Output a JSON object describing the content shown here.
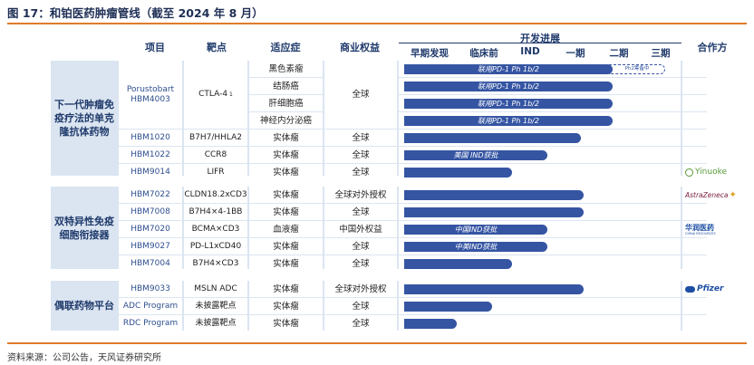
{
  "title": "图 17：和铂医药肿瘤管线（截至 2024 年 8 月）",
  "source": "资料来源：公司公告，天风证券研究所",
  "headers": {
    "project": "项目",
    "target": "靶点",
    "indication": "适应症",
    "rights": "商业权益",
    "progress": "开发进展",
    "partner": "合作方",
    "stages": [
      "早期发现",
      "临床前",
      "IND",
      "一期",
      "二期",
      "三期"
    ]
  },
  "groups": [
    {
      "label": "下一代肿瘤免疫疗法的单克隆抗体药物"
    },
    {
      "label": "双特异性免疫细胞衔接器"
    },
    {
      "label": "偶联药物平台"
    }
  ],
  "rows": [
    {
      "project": "Porustobart HBM4003",
      "target": "CTLA-4",
      "target_sup": "1",
      "rights": "全球",
      "indications": [
        {
          "name": "黑色素瘤",
          "bar_label": "联用PD-1 Ph 1b/2",
          "dashed_label": "Ph2筹备中"
        },
        {
          "name": "结肠癌",
          "bar_label": "联用PD-1 Ph 1b/2"
        },
        {
          "name": "肝细胞癌",
          "bar_label": "联用PD-1 Ph 1b/2"
        },
        {
          "name": "神经内分泌癌",
          "bar_label": "联用PD-1 Ph 1b/2"
        }
      ]
    },
    {
      "project": "HBM1020",
      "target": "B7H7/HHLA2",
      "indication": "实体瘤",
      "rights": "全球",
      "bar_fraction": 0.64,
      "bar_label": ""
    },
    {
      "project": "HBM1022",
      "target": "CCR8",
      "indication": "实体瘤",
      "rights": "全球",
      "bar_fraction": 0.52,
      "bar_label": "美国 IND获批"
    },
    {
      "project": "HBM9014",
      "target": "LIFR",
      "indication": "实体瘤",
      "rights": "全球",
      "bar_fraction": 0.39,
      "bar_label": "",
      "partner": "Yinuoke"
    },
    {
      "project": "HBM7022",
      "target": "CLDN18.2xCD3",
      "indication": "实体瘤",
      "rights": "全球对外授权",
      "bar_fraction": 0.65,
      "bar_label": "",
      "partner": "AstraZeneca"
    },
    {
      "project": "HBM7008",
      "target": "B7H4×4-1BB",
      "indication": "实体瘤",
      "rights": "全球",
      "bar_fraction": 0.65,
      "bar_label": ""
    },
    {
      "project": "HBM7020",
      "target": "BCMA×CD3",
      "indication": "血液瘤",
      "rights": "中国外权益",
      "bar_fraction": 0.52,
      "bar_label": "中国IND获批",
      "partner": "华润医药",
      "partner_sub": "CHINA RESOURCES"
    },
    {
      "project": "HBM9027",
      "target": "PD-L1xCD40",
      "indication": "实体瘤",
      "rights": "全球",
      "bar_fraction": 0.52,
      "bar_label": "中美IND获批"
    },
    {
      "project": "HBM7004",
      "target": "B7H4×CD3",
      "indication": "实体瘤",
      "rights": "全球",
      "bar_fraction": 0.39,
      "bar_label": ""
    },
    {
      "project": "HBM9033",
      "target": "MSLN ADC",
      "indication": "实体瘤",
      "rights": "全球对外授权",
      "bar_fraction": 0.65,
      "bar_label": "",
      "partner": "Pfizer"
    },
    {
      "project": "ADC Program",
      "target": "未披露靶点",
      "indication": "实体瘤",
      "rights": "全球",
      "bar_fraction": 0.32,
      "bar_label": ""
    },
    {
      "project": "RDC Program",
      "target": "未披露靶点",
      "indication": "实体瘤",
      "rights": "全球",
      "bar_fraction": 0.19,
      "bar_label": ""
    }
  ],
  "colors": {
    "accent": "#e07b2a",
    "bar": "#3555a3",
    "header_text": "#1f3a6b",
    "section_bg": "#dbe5f1"
  }
}
